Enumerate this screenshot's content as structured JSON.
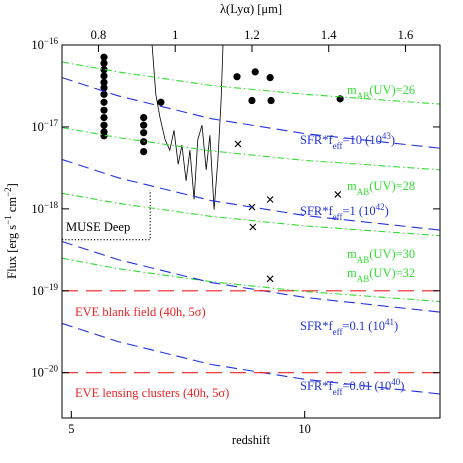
{
  "chart_data": {
    "type": "line",
    "x_label": "redshift",
    "y_label": [
      {
        "text": "Flux [erg s"
      },
      {
        "text": "−1",
        "shift": "super"
      },
      {
        "text": " cm"
      },
      {
        "text": "−2",
        "shift": "super"
      },
      {
        "text": "]"
      }
    ],
    "x2_label": "λ(Lyα) [μm]",
    "xlim": [
      4.8,
      12.9
    ],
    "xticks": [
      5,
      10
    ],
    "x2lim": [
      0.705,
      1.69
    ],
    "x2ticks": [
      0.8,
      1,
      1.2,
      1.4,
      1.6
    ],
    "ylim": [
      2.8e-21,
      1e-16
    ],
    "y_scale": "log",
    "yticks": [
      {
        "value": 1e-16,
        "label": "10",
        "exponent": "−16"
      },
      {
        "value": 1e-17,
        "label": "10",
        "exponent": "−17"
      },
      {
        "value": 1e-18,
        "label": "10",
        "exponent": "−18"
      },
      {
        "value": 1e-19,
        "label": "10",
        "exponent": "−19"
      },
      {
        "value": 1e-20,
        "label": "10",
        "exponent": "−20"
      }
    ],
    "series": [
      {
        "type": "scatter",
        "marker": "circle",
        "color": "#000000",
        "x": [
          5.7,
          5.7,
          5.7,
          5.7,
          5.7,
          5.7,
          5.7,
          5.7,
          5.7,
          5.7,
          5.7,
          5.7,
          5.7,
          6.55,
          6.55,
          6.55,
          6.55,
          6.55,
          6.92,
          8.55,
          8.94,
          9.26,
          8.87,
          9.28,
          10.76
        ],
        "values": [
          7.1e-17,
          6e-17,
          5e-17,
          4.2e-17,
          3.5e-17,
          3e-17,
          2.5e-17,
          2e-17,
          1.6e-17,
          1.3e-17,
          1.05e-17,
          8.7e-18,
          7.8e-18,
          1.3e-17,
          1.05e-17,
          8.5e-18,
          6.6e-18,
          5e-18,
          2e-17,
          4.1e-17,
          4.7e-17,
          4e-17,
          2.1e-17,
          2.1e-17,
          2.2e-17
        ]
      },
      {
        "type": "scatter",
        "marker": "cross",
        "color": "#000000",
        "x": [
          8.57,
          8.87,
          9.26,
          8.89,
          10.71,
          9.26
        ],
        "values": [
          6.2e-18,
          1.05e-18,
          1.3e-18,
          6e-19,
          1.5e-18,
          1.4e-19
        ]
      },
      {
        "type": "line",
        "style": "solid",
        "color": "#000000",
        "x": [
          6.73,
          6.81,
          6.9,
          7.01,
          7.11,
          7.2,
          7.29,
          7.37,
          7.46,
          7.54,
          7.63,
          7.71,
          7.8,
          7.89,
          7.97,
          8.06,
          8.14,
          8.21,
          8.25
        ],
        "values": [
          1e-16,
          2.5e-17,
          1.3e-17,
          7e-18,
          5.2e-18,
          9.1e-18,
          3.5e-18,
          6e-18,
          2.2e-18,
          5.2e-18,
          1.3e-18,
          7e-18,
          1.05e-17,
          3e-18,
          7.9e-18,
          9.8e-19,
          4e-18,
          2.1e-17,
          1e-16
        ]
      },
      {
        "type": "line",
        "style": "dotted",
        "color": "#000000",
        "x": [
          4.8,
          6.69,
          6.69
        ],
        "values": [
          4.2e-19,
          4.2e-19,
          1.7e-18
        ]
      },
      {
        "type": "line",
        "style": "dashdot",
        "color": "#33dd33",
        "x": [
          4.8,
          6,
          8,
          10,
          12.9
        ],
        "values": [
          6.2e-17,
          4.7e-17,
          3.2e-17,
          2.5e-17,
          1.9e-17
        ]
      },
      {
        "type": "line",
        "style": "dashdot",
        "color": "#33dd33",
        "x": [
          4.8,
          6,
          8,
          10,
          12.9
        ],
        "values": [
          9.8e-18,
          7.4e-18,
          5.1e-18,
          3.9e-18,
          3e-18
        ]
      },
      {
        "type": "line",
        "style": "dashdot",
        "color": "#33dd33",
        "x": [
          4.8,
          6,
          8,
          10,
          12.9
        ],
        "values": [
          1.55e-18,
          1.17e-18,
          8.1e-19,
          6.2e-19,
          4.7e-19
        ]
      },
      {
        "type": "line",
        "style": "dashdot",
        "color": "#33dd33",
        "x": [
          4.8,
          6,
          8,
          10,
          12.9
        ],
        "values": [
          2.5e-19,
          1.86e-19,
          1.29e-19,
          9.8e-20,
          7.4e-20
        ]
      },
      {
        "type": "line",
        "style": "dashed",
        "color": "#2233dd",
        "x": [
          4.8,
          6,
          8,
          10,
          12.9
        ],
        "values": [
          4e-17,
          2.4e-17,
          1.26e-17,
          8.3e-18,
          5.5e-18
        ]
      },
      {
        "type": "line",
        "style": "dashed",
        "color": "#2233dd",
        "x": [
          4.8,
          6,
          8,
          10,
          12.9
        ],
        "values": [
          4e-18,
          2.4e-18,
          1.26e-18,
          8.3e-19,
          5.5e-19
        ]
      },
      {
        "type": "line",
        "style": "dashed",
        "color": "#2233dd",
        "x": [
          4.8,
          6,
          8,
          10,
          12.9
        ],
        "values": [
          4e-19,
          2.4e-19,
          1.26e-19,
          8.3e-20,
          5.5e-20
        ]
      },
      {
        "type": "line",
        "style": "dashed",
        "color": "#2233dd",
        "x": [
          4.8,
          6,
          8,
          10,
          12.9
        ],
        "values": [
          4e-20,
          2.4e-20,
          1.26e-20,
          8.3e-21,
          5.5e-21
        ]
      },
      {
        "type": "line",
        "style": "longdash",
        "color": "#ee2222",
        "x": [
          4.8,
          12.9
        ],
        "values": [
          1e-19,
          1e-19
        ]
      },
      {
        "type": "line",
        "style": "longdash",
        "color": "#ee2222",
        "x": [
          4.8,
          12.9
        ],
        "values": [
          1e-20,
          1e-20
        ]
      }
    ],
    "annotations": [
      {
        "color": "#33dd33",
        "parts": [
          {
            "text": "m"
          },
          {
            "text": "AB",
            "shift": "sub"
          },
          {
            "text": "(UV)=26"
          }
        ]
      },
      {
        "color": "#33dd33",
        "parts": [
          {
            "text": "m"
          },
          {
            "text": "AB",
            "shift": "sub"
          },
          {
            "text": "(UV)=28"
          }
        ]
      },
      {
        "color": "#33dd33",
        "parts": [
          {
            "text": "m"
          },
          {
            "text": "AB",
            "shift": "sub"
          },
          {
            "text": "(UV)=30"
          }
        ]
      },
      {
        "color": "#33dd33",
        "parts": [
          {
            "text": "m"
          },
          {
            "text": "AB",
            "shift": "sub"
          },
          {
            "text": "(UV)=32"
          }
        ]
      },
      {
        "color": "#2233dd",
        "parts": [
          {
            "text": "SFR*f"
          },
          {
            "text": "eff",
            "shift": "sub"
          },
          {
            "text": "=10 (10"
          },
          {
            "text": "43",
            "shift": "super"
          },
          {
            "text": ")"
          }
        ]
      },
      {
        "color": "#2233dd",
        "parts": [
          {
            "text": "SFR*f"
          },
          {
            "text": "eff",
            "shift": "sub"
          },
          {
            "text": "=1 (10"
          },
          {
            "text": "42",
            "shift": "super"
          },
          {
            "text": ")"
          }
        ]
      },
      {
        "color": "#2233dd",
        "parts": [
          {
            "text": "SFR*f"
          },
          {
            "text": "eff",
            "shift": "sub"
          },
          {
            "text": "=0.1 (10"
          },
          {
            "text": "41",
            "shift": "super"
          },
          {
            "text": ")"
          }
        ]
      },
      {
        "color": "#2233dd",
        "parts": [
          {
            "text": "SFR*f"
          },
          {
            "text": "eff",
            "shift": "sub"
          },
          {
            "text": "=0.01 (10"
          },
          {
            "text": "40",
            "shift": "super"
          },
          {
            "text": ")"
          }
        ]
      },
      {
        "color": "#ee2222",
        "parts": [
          {
            "text": "EVE blank field (40h, 5σ)"
          }
        ]
      },
      {
        "color": "#ee2222",
        "parts": [
          {
            "text": "EVE lensing clusters (40h, 5σ)"
          }
        ]
      },
      {
        "color": "#000000",
        "parts": [
          {
            "text": "MUSE Deep"
          }
        ]
      }
    ]
  }
}
